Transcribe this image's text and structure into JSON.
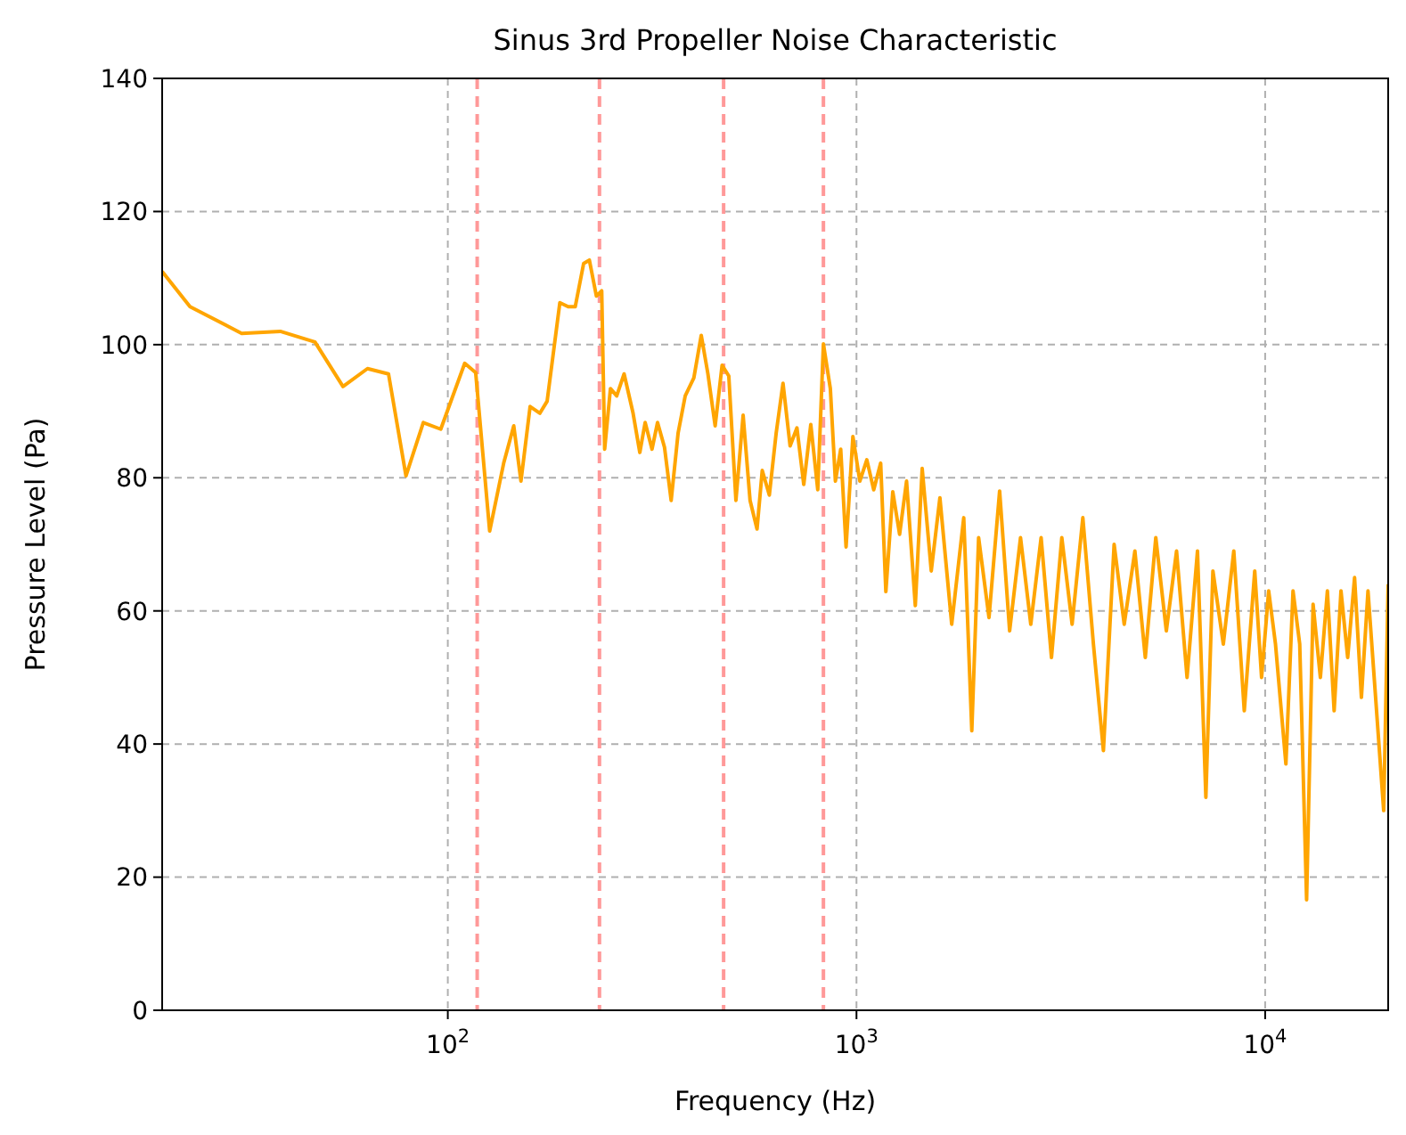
{
  "chart_data": {
    "type": "line",
    "title": "Sinus 3rd Propeller Noise Characteristic",
    "xlabel": "Frequency (Hz)",
    "ylabel": "Pressure Level (Pa)",
    "log": "x",
    "grid": true,
    "line_style": "solid",
    "xlim": [
      20,
      20000
    ],
    "xticks": [
      {
        "value": 100,
        "label": "10$^{2}$"
      },
      {
        "value": 1000,
        "label": "10$^{3}$"
      },
      {
        "value": 10000,
        "label": "10$^{4}$"
      }
    ],
    "ylim": [
      0,
      140
    ],
    "yticks": [
      0,
      20,
      40,
      60,
      80,
      100,
      120,
      140
    ],
    "ref_lines": [
      {
        "axis": "x",
        "value": 118,
        "color": "#ff9999",
        "line_style": "dashed"
      },
      {
        "axis": "x",
        "value": 235,
        "color": "#ff9999",
        "line_style": "dashed"
      },
      {
        "axis": "x",
        "value": 473,
        "color": "#ff9999",
        "line_style": "dashed"
      },
      {
        "axis": "x",
        "value": 830,
        "color": "#ff9999",
        "line_style": "dashed"
      }
    ],
    "series": [
      {
        "color": "#ffa500",
        "x": [
          20,
          23.4,
          31.3,
          38.9,
          47.3,
          55.4,
          63.6,
          71.6,
          79,
          87.1,
          96.1,
          110,
          117,
          126.6,
          137,
          145,
          151,
          159,
          168,
          175,
          188,
          197,
          205,
          215,
          222,
          231,
          238,
          242,
          250,
          259,
          270,
          284,
          295,
          304,
          316,
          326,
          339,
          352,
          366,
          381,
          400,
          417,
          433,
          451,
          469,
          487,
          507,
          528,
          549,
          571,
          588,
          612,
          636,
          661,
          688,
          715,
          743,
          773,
          804,
          830,
          863,
          888,
          915,
          943,
          980,
          1019,
          1060,
          1102,
          1146,
          1180,
          1227,
          1275,
          1326,
          1393,
          1448,
          1524,
          1600,
          1710,
          1830,
          1915,
          1990,
          2110,
          2240,
          2370,
          2520,
          2670,
          2830,
          3000,
          3180,
          3370,
          3580,
          3800,
          4020,
          4270,
          4520,
          4800,
          5090,
          5400,
          5730,
          6070,
          6440,
          6830,
          7160,
          7450,
          7900,
          8380,
          8890,
          9430,
          9800,
          10200,
          10600,
          11240,
          11700,
          12150,
          12630,
          13100,
          13650,
          14200,
          14750,
          15330,
          15920,
          16550,
          17200,
          17850,
          19500,
          20000
        ],
        "values": [
          111,
          105.7,
          101.7,
          102,
          100.4,
          93.7,
          96.4,
          95.6,
          80.3,
          88.3,
          87.3,
          97.2,
          95.8,
          72,
          82.2,
          87.8,
          79.5,
          90.7,
          89.7,
          91.5,
          106.3,
          105.7,
          105.7,
          112.2,
          112.7,
          107.3,
          108.1,
          84.3,
          93.4,
          92.3,
          95.6,
          89.7,
          83.8,
          88.3,
          84.3,
          88.3,
          84.6,
          76.6,
          86.7,
          92.3,
          95,
          101.4,
          95.6,
          87.8,
          96.9,
          95.3,
          76.6,
          89.4,
          76.6,
          72.3,
          81.1,
          77.4,
          86.7,
          94.2,
          84.8,
          87.5,
          79,
          88,
          78.2,
          100.1,
          93.4,
          79.5,
          84.3,
          69.6,
          86.2,
          79.5,
          82.7,
          78.2,
          82.2,
          62.9,
          77.9,
          71.5,
          79.5,
          60.8,
          81.4,
          66,
          77,
          58,
          74,
          42,
          71,
          59,
          78,
          57,
          71,
          58,
          71,
          53,
          71,
          58,
          74,
          55,
          39,
          70,
          58,
          69,
          53,
          71,
          57,
          69,
          50,
          69,
          32,
          66,
          55,
          69,
          45,
          66,
          50,
          63,
          55,
          37,
          63,
          55,
          16.6,
          61,
          50,
          63,
          45,
          63,
          53,
          65,
          47,
          63,
          30,
          64
        ]
      }
    ]
  }
}
